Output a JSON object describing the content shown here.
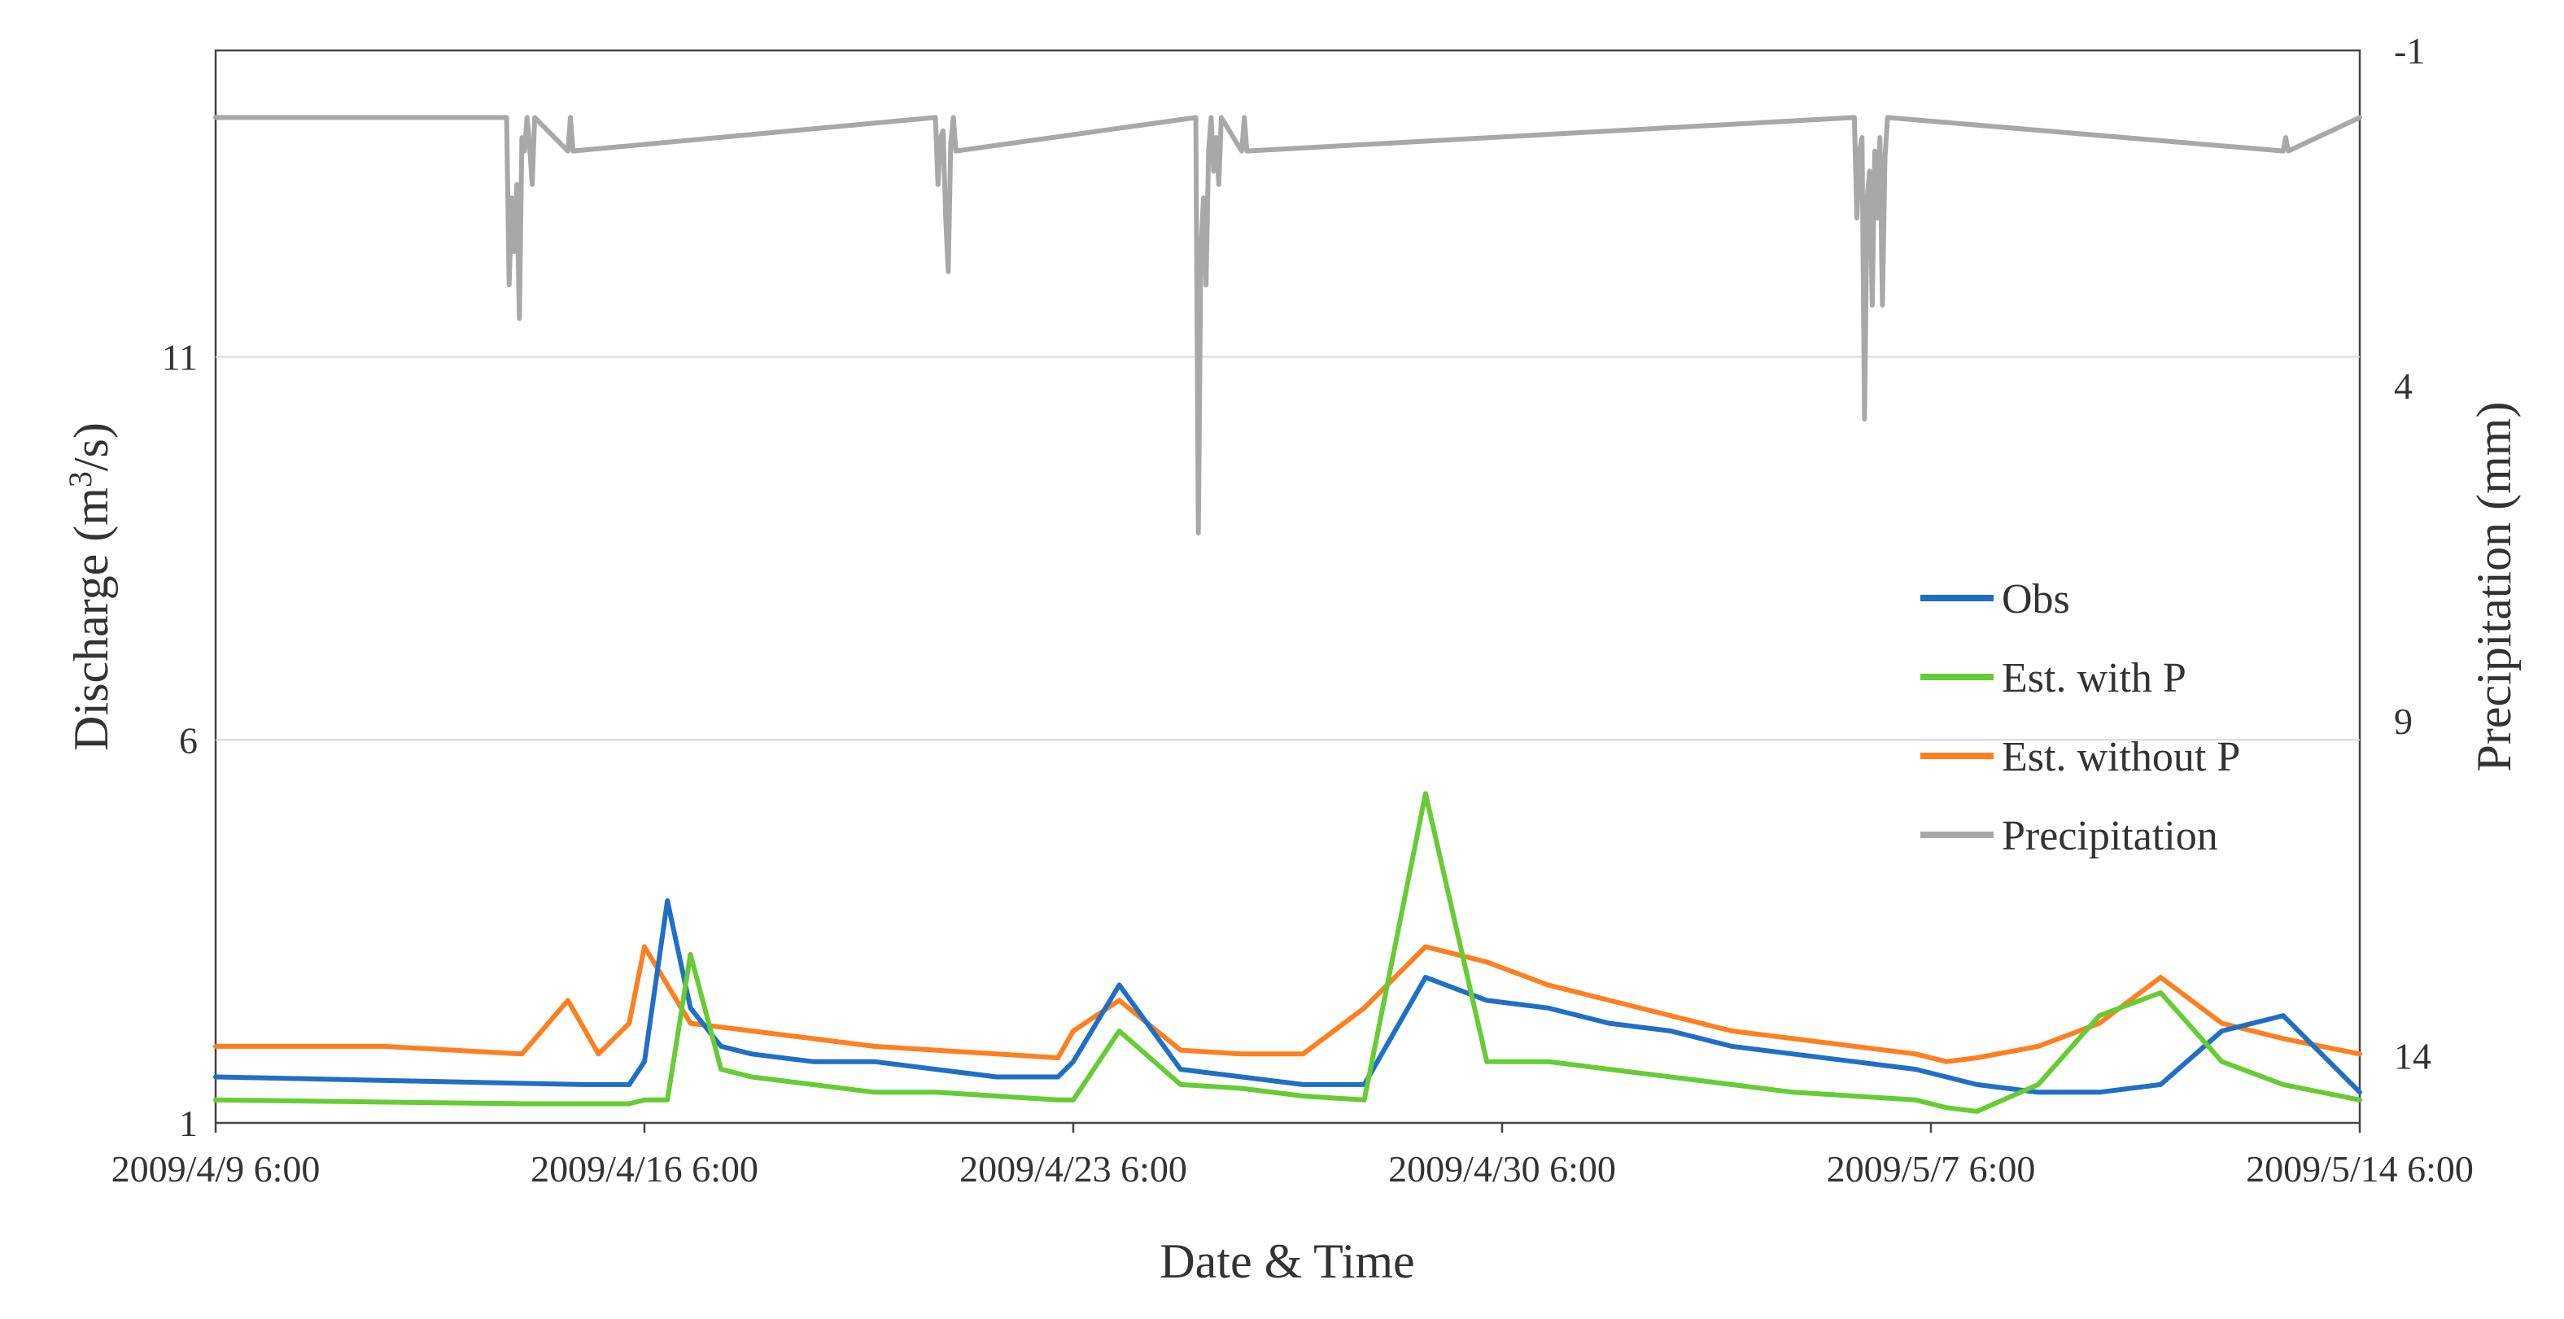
{
  "chart_data": {
    "type": "line",
    "x_axis": {
      "title": "Date & Time",
      "ticks": [
        "2009/4/9 6:00",
        "2009/4/16 6:00",
        "2009/4/23 6:00",
        "2009/4/30 6:00",
        "2009/5/7 6:00",
        "2009/5/14 6:00"
      ],
      "range": [
        "2009-04-09 06:00",
        "2009-05-14 06:00"
      ]
    },
    "y_axis_left": {
      "title": "Discharge (m³/s)",
      "title_parts": [
        "Discharge (m",
        "3",
        "/s)"
      ],
      "ticks": [
        "1",
        "6",
        "11"
      ],
      "range": [
        1,
        15
      ],
      "gridlines": [
        6,
        11
      ]
    },
    "y_axis_right": {
      "title": "Precipitation (mm)",
      "ticks": [
        "-1",
        "4",
        "9",
        "14"
      ],
      "range": [
        -1,
        15
      ],
      "inverted": true
    },
    "legend": {
      "position": "right-middle",
      "items": [
        {
          "label": "Obs",
          "color": "#1f6fc6"
        },
        {
          "label": "Est. with P",
          "color": "#66cc33"
        },
        {
          "label": "Est. without P",
          "color": "#ff7f1f"
        },
        {
          "label": "Precipitation",
          "color": "#a8a8a8"
        }
      ]
    },
    "series": [
      {
        "name": "Obs",
        "axis": "left",
        "color": "#1f6fc6",
        "x": [
          "2009-04-09 06:00",
          "2009-04-15 06:00",
          "2009-04-16 00:00",
          "2009-04-16 06:00",
          "2009-04-16 15:00",
          "2009-04-17 00:00",
          "2009-04-17 12:00",
          "2009-04-18 00:00",
          "2009-04-19 00:00",
          "2009-04-20 00:00",
          "2009-04-21 00:00",
          "2009-04-22 00:00",
          "2009-04-23 00:00",
          "2009-04-23 06:00",
          "2009-04-24 00:00",
          "2009-04-25 00:00",
          "2009-04-26 00:00",
          "2009-04-27 00:00",
          "2009-04-28 00:00",
          "2009-04-29 00:00",
          "2009-04-30 00:00",
          "2009-05-01 00:00",
          "2009-05-02 00:00",
          "2009-05-03 00:00",
          "2009-05-04 00:00",
          "2009-05-05 00:00",
          "2009-05-06 00:00",
          "2009-05-07 00:00",
          "2009-05-07 12:00",
          "2009-05-08 00:00",
          "2009-05-09 00:00",
          "2009-05-10 00:00",
          "2009-05-11 00:00",
          "2009-05-12 00:00",
          "2009-05-13 00:00",
          "2009-05-14 06:00"
        ],
        "y": [
          1.6,
          1.5,
          1.5,
          1.8,
          3.9,
          2.5,
          2.0,
          1.9,
          1.8,
          1.8,
          1.7,
          1.6,
          1.6,
          1.8,
          2.8,
          1.7,
          1.6,
          1.5,
          1.5,
          2.9,
          2.6,
          2.5,
          2.3,
          2.2,
          2.0,
          1.9,
          1.8,
          1.7,
          1.6,
          1.5,
          1.4,
          1.4,
          1.5,
          2.2,
          2.4,
          1.4
        ]
      },
      {
        "name": "Est. with P",
        "axis": "left",
        "color": "#66cc33",
        "x": [
          "2009-04-09 06:00",
          "2009-04-14 06:00",
          "2009-04-15 06:00",
          "2009-04-16 00:00",
          "2009-04-16 06:00",
          "2009-04-16 15:00",
          "2009-04-17 00:00",
          "2009-04-17 12:00",
          "2009-04-18 00:00",
          "2009-04-19 00:00",
          "2009-04-20 00:00",
          "2009-04-21 00:00",
          "2009-04-22 00:00",
          "2009-04-23 00:00",
          "2009-04-23 06:00",
          "2009-04-24 00:00",
          "2009-04-25 00:00",
          "2009-04-26 00:00",
          "2009-04-27 00:00",
          "2009-04-28 00:00",
          "2009-04-29 00:00",
          "2009-04-30 00:00",
          "2009-05-01 00:00",
          "2009-05-02 00:00",
          "2009-05-03 00:00",
          "2009-05-04 00:00",
          "2009-05-05 00:00",
          "2009-05-06 00:00",
          "2009-05-07 00:00",
          "2009-05-07 12:00",
          "2009-05-08 00:00",
          "2009-05-09 00:00",
          "2009-05-10 00:00",
          "2009-05-11 00:00",
          "2009-05-12 00:00",
          "2009-05-13 00:00",
          "2009-05-14 06:00"
        ],
        "y": [
          1.3,
          1.25,
          1.25,
          1.25,
          1.3,
          1.3,
          3.2,
          1.7,
          1.6,
          1.5,
          1.4,
          1.4,
          1.35,
          1.3,
          1.3,
          2.2,
          1.5,
          1.45,
          1.35,
          1.3,
          5.3,
          1.8,
          1.8,
          1.7,
          1.6,
          1.5,
          1.4,
          1.35,
          1.3,
          1.2,
          1.15,
          1.5,
          2.4,
          2.7,
          1.8,
          1.5,
          1.3
        ]
      },
      {
        "name": "Est. without P",
        "axis": "left",
        "color": "#ff7f1f",
        "x": [
          "2009-04-09 06:00",
          "2009-04-12 00:00",
          "2009-04-14 06:00",
          "2009-04-15 00:00",
          "2009-04-15 12:00",
          "2009-04-16 00:00",
          "2009-04-16 06:00",
          "2009-04-17 00:00",
          "2009-04-18 00:00",
          "2009-04-19 00:00",
          "2009-04-20 00:00",
          "2009-04-21 00:00",
          "2009-04-22 00:00",
          "2009-04-23 00:00",
          "2009-04-23 06:00",
          "2009-04-24 00:00",
          "2009-04-25 00:00",
          "2009-04-26 00:00",
          "2009-04-27 00:00",
          "2009-04-28 00:00",
          "2009-04-29 00:00",
          "2009-04-30 00:00",
          "2009-05-01 00:00",
          "2009-05-02 00:00",
          "2009-05-03 00:00",
          "2009-05-04 00:00",
          "2009-05-05 00:00",
          "2009-05-06 00:00",
          "2009-05-07 00:00",
          "2009-05-07 12:00",
          "2009-05-08 00:00",
          "2009-05-09 00:00",
          "2009-05-10 00:00",
          "2009-05-11 00:00",
          "2009-05-12 00:00",
          "2009-05-13 00:00",
          "2009-05-14 06:00"
        ],
        "y": [
          2.0,
          2.0,
          1.9,
          2.6,
          1.9,
          2.3,
          3.3,
          2.3,
          2.2,
          2.1,
          2.0,
          1.95,
          1.9,
          1.85,
          2.2,
          2.6,
          1.95,
          1.9,
          1.9,
          2.5,
          3.3,
          3.1,
          2.8,
          2.6,
          2.4,
          2.2,
          2.1,
          2.0,
          1.9,
          1.8,
          1.85,
          2.0,
          2.3,
          2.9,
          2.3,
          2.1,
          1.9
        ]
      },
      {
        "name": "Precipitation",
        "axis": "right",
        "color": "#a8a8a8",
        "x": [
          "2009-04-09 06:00",
          "2009-04-14 00:00",
          "2009-04-14 01:00",
          "2009-04-14 02:00",
          "2009-04-14 03:00",
          "2009-04-14 04:00",
          "2009-04-14 05:00",
          "2009-04-14 06:00",
          "2009-04-14 07:00",
          "2009-04-14 08:00",
          "2009-04-14 09:00",
          "2009-04-14 10:00",
          "2009-04-14 11:00",
          "2009-04-15 00:00",
          "2009-04-15 01:00",
          "2009-04-15 02:00",
          "2009-04-21 00:00",
          "2009-04-21 01:00",
          "2009-04-21 02:00",
          "2009-04-21 03:00",
          "2009-04-21 04:00",
          "2009-04-21 05:00",
          "2009-04-21 06:00",
          "2009-04-21 07:00",
          "2009-04-21 08:00",
          "2009-04-25 06:00",
          "2009-04-25 07:00",
          "2009-04-25 08:00",
          "2009-04-25 09:00",
          "2009-04-25 10:00",
          "2009-04-25 11:00",
          "2009-04-25 12:00",
          "2009-04-25 13:00",
          "2009-04-25 14:00",
          "2009-04-25 15:00",
          "2009-04-25 16:00",
          "2009-04-26 00:00",
          "2009-04-26 01:00",
          "2009-04-26 02:00",
          "2009-05-06 00:00",
          "2009-05-06 01:00",
          "2009-05-06 02:00",
          "2009-05-06 03:00",
          "2009-05-06 04:00",
          "2009-05-06 05:00",
          "2009-05-06 06:00",
          "2009-05-06 07:00",
          "2009-05-06 08:00",
          "2009-05-06 09:00",
          "2009-05-06 10:00",
          "2009-05-06 11:00",
          "2009-05-06 12:00",
          "2009-05-06 13:00",
          "2009-05-13 00:00",
          "2009-05-13 01:00",
          "2009-05-13 02:00",
          "2009-05-14 06:00"
        ],
        "y": [
          0,
          0,
          2.5,
          1.2,
          2.0,
          1.0,
          3.0,
          0.3,
          0.5,
          0,
          0.4,
          1.0,
          0,
          0.5,
          0,
          0.5,
          0,
          1.0,
          0.3,
          0.2,
          1.5,
          2.3,
          0.4,
          0,
          0.5,
          0,
          6.2,
          2.0,
          1.2,
          2.5,
          0.5,
          0,
          0.8,
          0.3,
          1.0,
          0,
          0.5,
          0,
          0.5,
          0,
          1.5,
          0.5,
          0.3,
          4.5,
          1.2,
          0.8,
          2.8,
          0.5,
          1.5,
          0.3,
          2.8,
          0.6,
          0,
          0.5,
          0.3,
          0.5,
          0
        ]
      }
    ]
  }
}
